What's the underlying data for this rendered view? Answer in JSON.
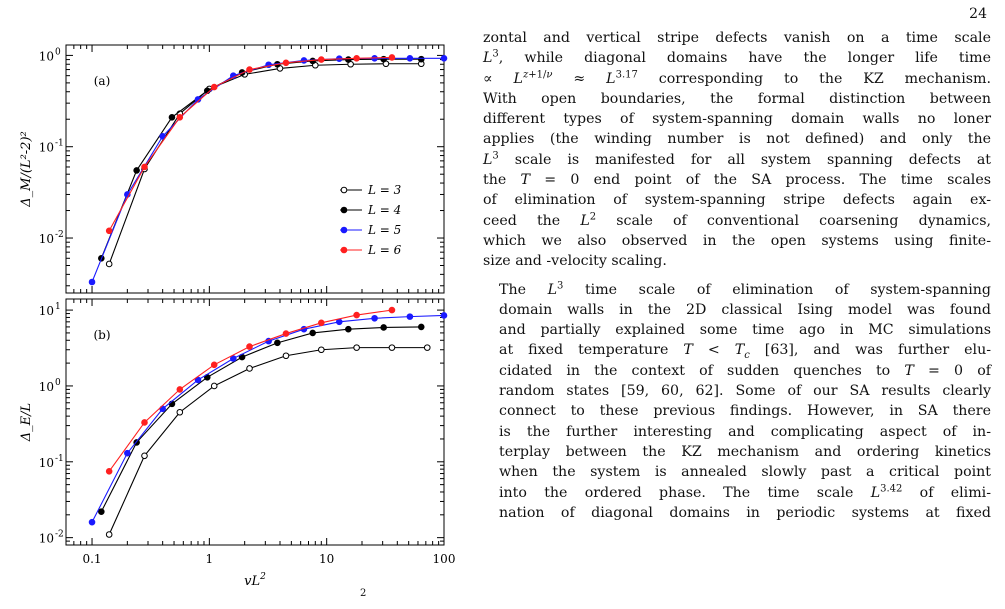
{
  "page_number": "24",
  "figure": {
    "panel_a": {
      "tag": "(a)",
      "ylabel": "Δ_M/(L²-2)²",
      "yticks": [
        "10^0",
        "10^-1",
        "10^-2"
      ],
      "legend": [
        "L = 3",
        "L = 4",
        "L = 5",
        "L = 6"
      ]
    },
    "panel_b": {
      "tag": "(b)",
      "ylabel": "Δ_E/L",
      "yticks": [
        "10^1",
        "10^0",
        "10^-1",
        "10^-2"
      ]
    },
    "xlabel": "vL²",
    "xticks": [
      "0.1",
      "1",
      "10",
      "100"
    ],
    "caption_fragment": "2"
  },
  "chart_data": [
    {
      "type": "line",
      "panel": "(a)",
      "xlabel": "vL²",
      "ylabel": "Δ_M/(L²-2)²",
      "xscale": "log",
      "yscale": "log",
      "xlim": [
        0.06,
        100
      ],
      "ylim": [
        0.0025,
        1.3
      ],
      "legend_position": "middle-right",
      "series": [
        {
          "name": "L = 3",
          "marker": "open-circle",
          "color": "#000000",
          "x": [
            0.14,
            0.28,
            0.56,
            1.0,
            2.0,
            4.0,
            8.0,
            16.0,
            32.0,
            64.0
          ],
          "y": [
            0.0052,
            0.057,
            0.23,
            0.43,
            0.62,
            0.72,
            0.78,
            0.8,
            0.81,
            0.81
          ]
        },
        {
          "name": "L = 4",
          "marker": "filled-circle",
          "color": "#000000",
          "x": [
            0.12,
            0.24,
            0.48,
            0.96,
            1.9,
            3.8,
            7.6,
            15.3,
            30.6,
            64.0
          ],
          "y": [
            0.006,
            0.055,
            0.21,
            0.41,
            0.65,
            0.8,
            0.87,
            0.9,
            0.91,
            0.91
          ]
        },
        {
          "name": "L = 5",
          "marker": "filled-circle",
          "color": "#1a1aff",
          "x": [
            0.1,
            0.2,
            0.4,
            0.8,
            1.6,
            3.2,
            6.4,
            12.8,
            25.6,
            51.2,
            100.0
          ],
          "y": [
            0.0033,
            0.03,
            0.13,
            0.33,
            0.6,
            0.79,
            0.88,
            0.92,
            0.93,
            0.93,
            0.93
          ]
        },
        {
          "name": "L = 6",
          "marker": "filled-circle",
          "color": "#ff2020",
          "x": [
            0.14,
            0.28,
            0.56,
            1.1,
            2.2,
            4.5,
            9.0,
            18.0,
            36.0
          ],
          "y": [
            0.012,
            0.06,
            0.21,
            0.45,
            0.7,
            0.83,
            0.9,
            0.93,
            0.95
          ]
        }
      ]
    },
    {
      "type": "line",
      "panel": "(b)",
      "xlabel": "vL²",
      "ylabel": "Δ_E/L",
      "xscale": "log",
      "yscale": "log",
      "xlim": [
        0.06,
        100
      ],
      "ylim": [
        0.008,
        14
      ],
      "series": [
        {
          "name": "L = 3",
          "marker": "open-circle",
          "color": "#000000",
          "x": [
            0.14,
            0.28,
            0.56,
            1.1,
            2.2,
            4.5,
            9.0,
            18.0,
            36.0,
            72.0
          ],
          "y": [
            0.011,
            0.12,
            0.45,
            1.0,
            1.7,
            2.5,
            3.0,
            3.2,
            3.2,
            3.2
          ]
        },
        {
          "name": "L = 4",
          "marker": "filled-circle",
          "color": "#000000",
          "x": [
            0.12,
            0.24,
            0.48,
            0.96,
            1.9,
            3.8,
            7.6,
            15.3,
            30.6,
            64.0
          ],
          "y": [
            0.022,
            0.18,
            0.58,
            1.3,
            2.4,
            3.7,
            5.0,
            5.6,
            5.9,
            6.0
          ]
        },
        {
          "name": "L = 5",
          "marker": "filled-circle",
          "color": "#1a1aff",
          "x": [
            0.1,
            0.2,
            0.4,
            0.8,
            1.6,
            3.2,
            6.4,
            12.8,
            25.6,
            51.2,
            100.0
          ],
          "y": [
            0.016,
            0.13,
            0.5,
            1.2,
            2.3,
            3.9,
            5.6,
            7.0,
            7.8,
            8.2,
            8.5
          ]
        },
        {
          "name": "L = 6",
          "marker": "filled-circle",
          "color": "#ff2020",
          "x": [
            0.14,
            0.28,
            0.56,
            1.1,
            2.2,
            4.5,
            9.0,
            18.0,
            36.0
          ],
          "y": [
            0.075,
            0.33,
            0.9,
            1.9,
            3.3,
            4.9,
            6.8,
            8.6,
            10.0
          ]
        }
      ]
    }
  ],
  "text": {
    "p1": [
      "zontal and vertical stripe defects vanish on a time scale",
      "L³, while diagonal domains have the longer life time",
      "∝ L^{z+1/ν} ≈ L^{3.17} corresponding to the KZ mechanism.",
      "With open boundaries, the formal distinction between",
      "different types of system-spanning domain walls no loner",
      "applies (the winding number is not defined) and only the",
      "L³ scale is manifested for all system spanning defects at",
      "the T = 0 end point of the SA process. The time scales",
      "of elimination of system-spanning stripe defects again ex-",
      "ceed the L² scale of conventional coarsening dynamics,",
      "which we also observed in the open systems using finite-",
      "size and -velocity scaling."
    ],
    "p2": [
      "The L³ time scale of elimination of system-spanning",
      "domain walls in the 2D classical Ising model was found",
      "and partially explained some time ago in MC simulations",
      "at fixed temperature T < T_c [63], and was further elu-",
      "cidated in the context of sudden quenches to T = 0 of",
      "random states [59, 60, 62]. Some of our SA results clearly",
      "connect to these previous findings. However, in SA there",
      "is the further interesting and complicating aspect of in-",
      "terplay between the KZ mechanism and ordering kinetics",
      "when the system is annealed slowly past a critical point",
      "into the ordered phase. The time scale L^{3.42} of elimi-",
      "nation of diagonal domains in periodic systems at fixed"
    ]
  }
}
